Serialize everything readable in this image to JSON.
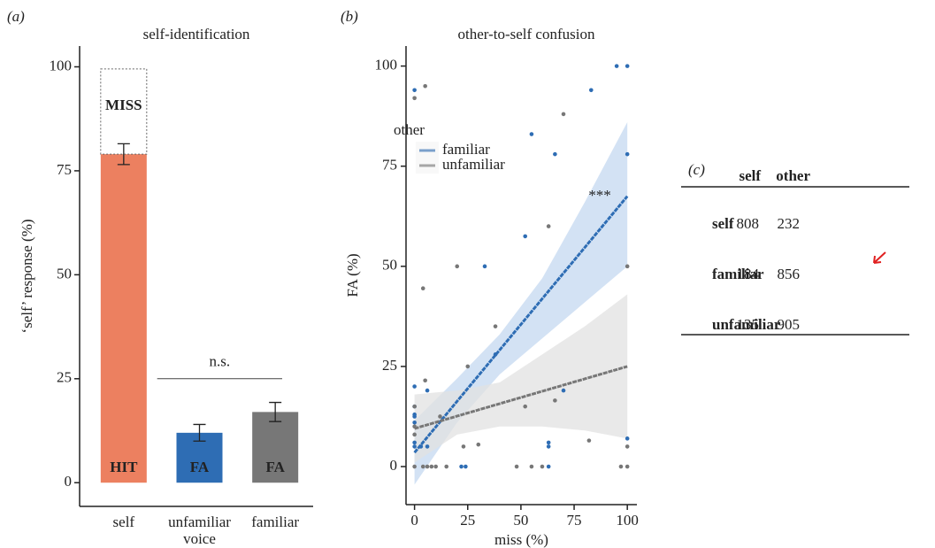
{
  "chart_data": [
    {
      "type": "bar",
      "panel_label": "(a)",
      "title": "self-identification",
      "ylabel": "‘self’ response (%)",
      "xlabel": "voice",
      "categories": [
        "self",
        "unfamiliar",
        "familiar"
      ],
      "values": [
        79,
        12,
        17
      ],
      "errors": [
        2.5,
        2,
        2.3
      ],
      "colors": [
        "#ec8060",
        "#2e6db4",
        "#777777"
      ],
      "bar_labels": [
        "HIT",
        "FA",
        "FA"
      ],
      "miss_box": {
        "label": "MISS",
        "top": 99.5,
        "color": "#ec8060"
      },
      "bracket": {
        "label": "n.s.",
        "y": 25
      },
      "ylim": [
        -5.7,
        105
      ],
      "yticks": [
        0,
        25,
        50,
        75,
        100
      ]
    },
    {
      "type": "scatter",
      "panel_label": "(b)",
      "title": "other-to-self confusion",
      "xlabel": "miss (%)",
      "ylabel": "FA (%)",
      "legend_title": "other",
      "annotation": "***",
      "series": [
        {
          "name": "familiar",
          "color": "#2e6db4",
          "band_color": "#c4d8f0",
          "x": [
            0,
            0,
            0,
            0,
            0,
            0,
            0,
            0,
            3,
            6,
            6,
            22,
            24,
            33,
            38,
            52,
            55,
            63,
            63,
            63,
            66,
            70,
            83,
            95,
            100,
            100,
            100
          ],
          "values": [
            94,
            20,
            12.5,
            13,
            6,
            5,
            15,
            11,
            5,
            19,
            5,
            0,
            0,
            50,
            28,
            57.5,
            83,
            6,
            5,
            0,
            78,
            19,
            94,
            100,
            100,
            78,
            7
          ],
          "fit": {
            "x": [
              0,
              100
            ],
            "values": [
              3.5,
              67.5
            ]
          },
          "band": {
            "x": [
              0,
              20,
              40,
              60,
              80,
              100
            ],
            "lower": [
              -4.5,
              11,
              23,
              32,
              41,
              50
            ],
            "upper": [
              11.5,
              22,
              33,
              47,
              66,
              86
            ]
          }
        },
        {
          "name": "unfamiliar",
          "color": "#777777",
          "band_color": "#e1e1e1",
          "x": [
            0,
            5,
            4,
            5,
            0,
            0,
            0,
            0,
            4,
            6,
            8,
            20,
            25,
            23,
            30,
            38,
            48,
            52,
            55,
            60,
            63,
            66,
            70,
            82,
            97,
            100,
            100,
            100,
            10,
            12,
            15
          ],
          "values": [
            92,
            95,
            44.5,
            21.5,
            15,
            10,
            8,
            0,
            0,
            0,
            0,
            50,
            25,
            5,
            5.5,
            35,
            0,
            15,
            0,
            0,
            60,
            16.5,
            88,
            6.5,
            0,
            50,
            0,
            5,
            0,
            12.5,
            0
          ],
          "fit": {
            "x": [
              0,
              100
            ],
            "values": [
              9.5,
              25
            ]
          },
          "band": {
            "x": [
              0,
              20,
              40,
              60,
              80,
              100
            ],
            "lower": [
              1,
              8,
              10,
              10,
              9,
              7
            ],
            "upper": [
              18,
              19,
              21,
              28,
              35,
              43
            ]
          }
        }
      ],
      "xlim": [
        -4,
        104.5
      ],
      "ylim": [
        -9.5,
        105
      ],
      "xticks": [
        0,
        25,
        50,
        75,
        100
      ],
      "yticks": [
        0,
        25,
        50,
        75,
        100
      ]
    }
  ],
  "table": {
    "panel_label": "(c)",
    "columns": [
      "self",
      "other"
    ],
    "rows": [
      [
        "self",
        "808",
        "232"
      ],
      [
        "familiar",
        "184",
        "856"
      ],
      [
        "unfamiliar",
        "135",
        "905"
      ]
    ]
  }
}
